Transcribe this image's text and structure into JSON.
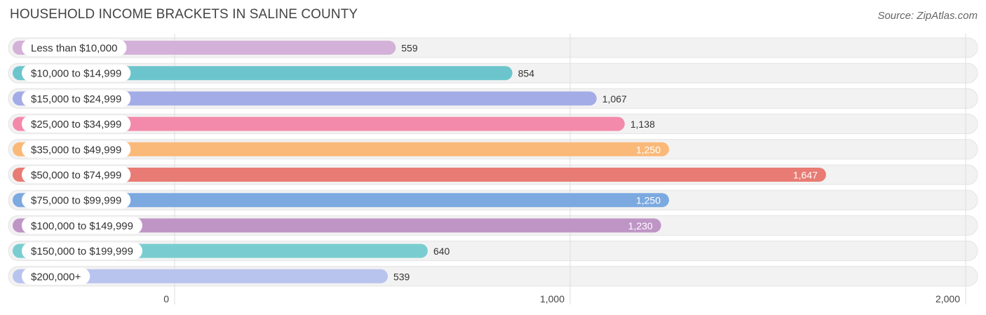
{
  "title": "HOUSEHOLD INCOME BRACKETS IN SALINE COUNTY",
  "source": "Source: ZipAtlas.com",
  "chart_data": {
    "type": "bar",
    "orientation": "horizontal",
    "title": "HOUSEHOLD INCOME BRACKETS IN SALINE COUNTY",
    "xlabel": "",
    "ylabel": "",
    "xlim": [
      0,
      2000
    ],
    "grid": true,
    "ticks": [
      {
        "value": 0,
        "label": "0"
      },
      {
        "value": 1000,
        "label": "1,000"
      },
      {
        "value": 2000,
        "label": "2,000"
      }
    ],
    "categories": [
      "Less than $10,000",
      "$10,000 to $14,999",
      "$15,000 to $24,999",
      "$25,000 to $34,999",
      "$35,000 to $49,999",
      "$50,000 to $74,999",
      "$75,000 to $99,999",
      "$100,000 to $149,999",
      "$150,000 to $199,999",
      "$200,000+"
    ],
    "values": [
      559,
      854,
      1067,
      1138,
      1250,
      1647,
      1250,
      1230,
      640,
      539
    ],
    "value_labels": [
      "559",
      "854",
      "1,067",
      "1,138",
      "1,250",
      "1,647",
      "1,250",
      "1,230",
      "640",
      "539"
    ],
    "colors": [
      "#d4b1d8",
      "#6cc5cc",
      "#a3ace6",
      "#f48aab",
      "#fab979",
      "#e87b73",
      "#7ba9e0",
      "#bf95c6",
      "#79cdd0",
      "#b8c4ee"
    ]
  }
}
